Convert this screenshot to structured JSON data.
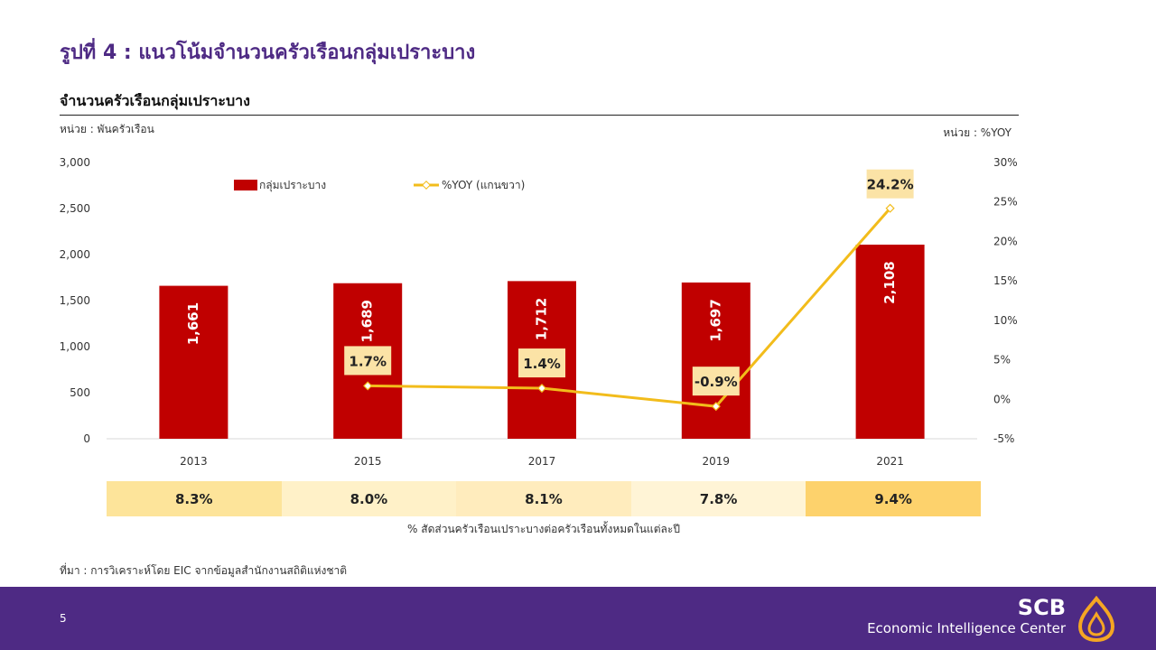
{
  "slide_title": "รูปที่ 4 : แนวโน้มจำนวนครัวเรือนกลุ่มเปราะบาง",
  "chart_title": "จำนวนครัวเรือนกลุ่มเปราะบาง",
  "unit_left": "หน่วย : พันครัวเรือน",
  "unit_right": "หน่วย : %YOY",
  "colors": {
    "bar": "#c00000",
    "line": "#f2bc1b",
    "label_box": "#fbe3a6",
    "brand": "#4e2a84"
  },
  "chart_data": {
    "type": "bar",
    "categories": [
      "2013",
      "2015",
      "2017",
      "2019",
      "2021"
    ],
    "series": [
      {
        "name": "กลุ่มเปราะบาง",
        "type": "bar",
        "axis": "left",
        "values": [
          1661,
          1689,
          1712,
          1697,
          2108
        ],
        "labels": [
          "1,661",
          "1,689",
          "1,712",
          "1,697",
          "2,108"
        ]
      },
      {
        "name": "%YOY (แกนขวา)",
        "type": "line",
        "axis": "right",
        "values": [
          null,
          1.7,
          1.4,
          -0.9,
          24.2
        ],
        "labels": [
          "",
          "1.7%",
          "1.4%",
          "-0.9%",
          "24.2%"
        ]
      }
    ],
    "y_left": {
      "min": 0,
      "max": 3000,
      "ticks": [
        "0",
        "500",
        "1,000",
        "1,500",
        "2,000",
        "2,500",
        "3,000"
      ]
    },
    "y_right": {
      "min": -5,
      "max": 30,
      "ticks": [
        "-5%",
        "0%",
        "5%",
        "10%",
        "15%",
        "20%",
        "25%",
        "30%"
      ]
    },
    "legend_position": "top"
  },
  "share_row": {
    "values": [
      "8.3%",
      "8.0%",
      "8.1%",
      "7.8%",
      "9.4%"
    ],
    "shades": [
      "#fde49a",
      "#fff1c8",
      "#ffecbd",
      "#fff4d6",
      "#fdd26c"
    ],
    "caption": "% สัดส่วนครัวเรือนเปราะบางต่อครัวเรือนทั้งหมดในแต่ละปี"
  },
  "source": "ที่มา : การวิเคราะห์โดย EIC จากข้อมูลสำนักงานสถิติแห่งชาติ",
  "footer": {
    "page_number": "5",
    "brand_name": "SCB",
    "brand_sub": "Economic Intelligence Center"
  }
}
